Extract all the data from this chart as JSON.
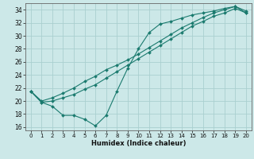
{
  "title": "",
  "xlabel": "Humidex (Indice chaleur)",
  "ylabel": "",
  "xlim": [
    -0.5,
    20.5
  ],
  "ylim": [
    15.5,
    35.0
  ],
  "xticks": [
    0,
    1,
    2,
    3,
    4,
    5,
    6,
    7,
    8,
    9,
    10,
    11,
    12,
    13,
    14,
    15,
    16,
    17,
    18,
    19,
    20
  ],
  "yticks": [
    16,
    18,
    20,
    22,
    24,
    26,
    28,
    30,
    32,
    34
  ],
  "bg_color": "#cce8e8",
  "grid_color": "#aacfcf",
  "line_color": "#1a7a6e",
  "line1_x": [
    0,
    1,
    2,
    3,
    4,
    5,
    6,
    7,
    8,
    9,
    10,
    11,
    12,
    13,
    14,
    15,
    16,
    17,
    18,
    19,
    20
  ],
  "line1_y": [
    21.5,
    19.8,
    19.2,
    17.8,
    17.8,
    17.2,
    16.2,
    17.8,
    21.5,
    25.0,
    28.0,
    30.5,
    31.8,
    32.2,
    32.7,
    33.2,
    33.5,
    33.8,
    34.2,
    34.5,
    33.5
  ],
  "line2_x": [
    0,
    1,
    2,
    3,
    4,
    5,
    6,
    7,
    8,
    9,
    10,
    11,
    12,
    13,
    14,
    15,
    16,
    17,
    18,
    19,
    20
  ],
  "line2_y": [
    21.5,
    19.8,
    20.0,
    20.5,
    21.0,
    21.8,
    22.5,
    23.5,
    24.5,
    25.5,
    26.5,
    27.5,
    28.5,
    29.5,
    30.5,
    31.5,
    32.2,
    33.0,
    33.5,
    34.2,
    33.5
  ],
  "line3_x": [
    0,
    1,
    2,
    3,
    4,
    5,
    6,
    7,
    8,
    9,
    10,
    11,
    12,
    13,
    14,
    15,
    16,
    17,
    18,
    19,
    20
  ],
  "line3_y": [
    21.5,
    20.0,
    20.5,
    21.2,
    22.0,
    23.0,
    23.8,
    24.8,
    25.5,
    26.3,
    27.2,
    28.2,
    29.2,
    30.2,
    31.2,
    32.0,
    32.8,
    33.5,
    34.0,
    34.5,
    33.8
  ],
  "marker_size": 2.0,
  "line_width": 0.8,
  "tick_fontsize": 5.0,
  "xlabel_fontsize": 6.0
}
